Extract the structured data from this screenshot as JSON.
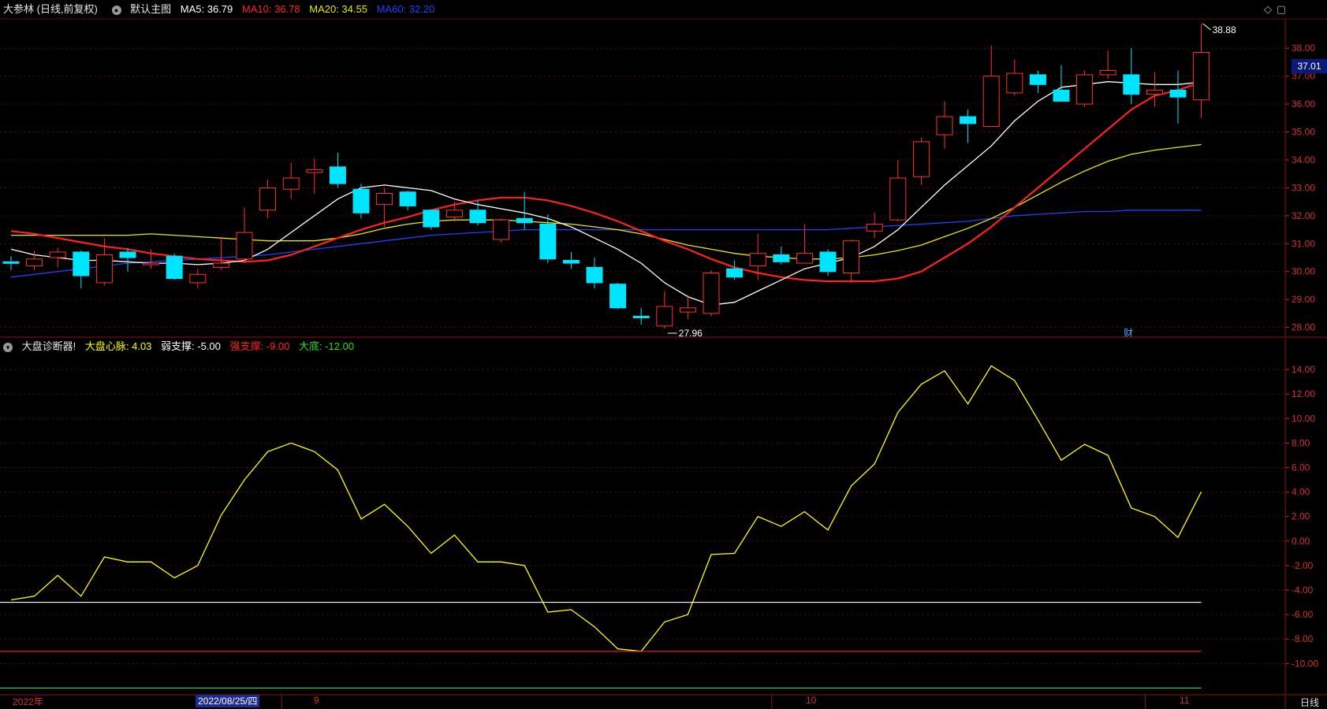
{
  "upper_header": {
    "stock_label": "大参林 (日线,前复权)",
    "template_label": "默认主图",
    "ma5": "MA5: 36.79",
    "ma10": "MA10: 36.78",
    "ma20": "MA20: 34.55",
    "ma60": "MA60: 32.20",
    "colors": {
      "ma5": "#ffffff",
      "ma10": "#ff2020",
      "ma20": "#e8e800",
      "ma60": "#2040ff"
    }
  },
  "lower_header": {
    "indicator_label": "大盘诊断器!",
    "heartbeat": "大盘心脉: 4.03",
    "weak_support": "弱支撑: -5.00",
    "strong_support": "强支撑: -9.00",
    "bottom": "大底: -12.00",
    "colors": {
      "heartbeat": "#ffff00",
      "weak_support": "#ffffff",
      "strong_support": "#ff2020",
      "bottom": "#20dd20"
    }
  },
  "current_price_tag": "37.01",
  "high_annotation": "38.88",
  "low_annotation": "27.96",
  "finance_marker": "财",
  "x_axis": {
    "left_year": "2022年",
    "cursor_date": "2022/08/25/四",
    "month_9": "9",
    "month_10": "10",
    "month_11": "11",
    "period": "日线"
  },
  "window_icons": [
    "diamond-icon",
    "restore-icon"
  ],
  "chart_data": [
    {
      "type": "candlestick",
      "title": "大参林 (日线,前复权)",
      "y_ticks": [
        "38.00",
        "37.00",
        "36.00",
        "35.00",
        "34.00",
        "33.00",
        "32.00",
        "31.00",
        "30.00",
        "29.00",
        "28.00"
      ],
      "ylim": [
        27.65,
        39.05
      ],
      "up_color": "#ff3030",
      "down_color": "#00e5ff",
      "candles": [
        {
          "o": 30.35,
          "h": 30.55,
          "l": 30.05,
          "c": 30.3
        },
        {
          "o": 30.2,
          "h": 30.75,
          "l": 30.05,
          "c": 30.45
        },
        {
          "o": 30.5,
          "h": 30.85,
          "l": 30.15,
          "c": 30.7
        },
        {
          "o": 30.7,
          "h": 30.75,
          "l": 29.4,
          "c": 29.85
        },
        {
          "o": 29.6,
          "h": 31.2,
          "l": 29.5,
          "c": 30.6
        },
        {
          "o": 30.7,
          "h": 30.85,
          "l": 30.0,
          "c": 30.5
        },
        {
          "o": 30.25,
          "h": 30.8,
          "l": 30.1,
          "c": 30.3
        },
        {
          "o": 30.55,
          "h": 30.65,
          "l": 29.7,
          "c": 29.75
        },
        {
          "o": 29.6,
          "h": 30.1,
          "l": 29.4,
          "c": 29.9
        },
        {
          "o": 30.15,
          "h": 31.25,
          "l": 30.05,
          "c": 30.3
        },
        {
          "o": 30.45,
          "h": 32.3,
          "l": 30.3,
          "c": 31.4
        },
        {
          "o": 32.2,
          "h": 33.3,
          "l": 31.9,
          "c": 33.0
        },
        {
          "o": 32.95,
          "h": 33.9,
          "l": 32.6,
          "c": 33.35
        },
        {
          "o": 33.55,
          "h": 34.05,
          "l": 32.8,
          "c": 33.65
        },
        {
          "o": 33.75,
          "h": 34.25,
          "l": 33.0,
          "c": 33.15
        },
        {
          "o": 32.95,
          "h": 33.15,
          "l": 31.9,
          "c": 32.1
        },
        {
          "o": 32.4,
          "h": 33.0,
          "l": 31.6,
          "c": 32.8
        },
        {
          "o": 32.85,
          "h": 32.9,
          "l": 32.2,
          "c": 32.35
        },
        {
          "o": 32.2,
          "h": 32.2,
          "l": 31.5,
          "c": 31.6
        },
        {
          "o": 31.95,
          "h": 32.5,
          "l": 31.8,
          "c": 32.2
        },
        {
          "o": 32.2,
          "h": 32.55,
          "l": 31.65,
          "c": 31.75
        },
        {
          "o": 31.15,
          "h": 31.9,
          "l": 31.05,
          "c": 31.85
        },
        {
          "o": 31.9,
          "h": 32.85,
          "l": 31.5,
          "c": 31.75
        },
        {
          "o": 31.7,
          "h": 32.05,
          "l": 30.3,
          "c": 30.45
        },
        {
          "o": 30.4,
          "h": 30.7,
          "l": 30.1,
          "c": 30.3
        },
        {
          "o": 30.15,
          "h": 30.5,
          "l": 29.4,
          "c": 29.6
        },
        {
          "o": 29.55,
          "h": 29.6,
          "l": 28.65,
          "c": 28.7
        },
        {
          "o": 28.4,
          "h": 28.7,
          "l": 28.1,
          "c": 28.35
        },
        {
          "o": 28.05,
          "h": 29.3,
          "l": 27.96,
          "c": 28.75
        },
        {
          "o": 28.55,
          "h": 29.15,
          "l": 28.3,
          "c": 28.7
        },
        {
          "o": 28.5,
          "h": 30.05,
          "l": 28.4,
          "c": 29.95
        },
        {
          "o": 30.1,
          "h": 30.4,
          "l": 29.7,
          "c": 29.8
        },
        {
          "o": 30.2,
          "h": 31.35,
          "l": 29.7,
          "c": 30.65
        },
        {
          "o": 30.6,
          "h": 30.9,
          "l": 30.25,
          "c": 30.35
        },
        {
          "o": 30.3,
          "h": 31.7,
          "l": 30.3,
          "c": 30.65
        },
        {
          "o": 30.7,
          "h": 30.8,
          "l": 29.85,
          "c": 30.0
        },
        {
          "o": 29.95,
          "h": 31.15,
          "l": 29.6,
          "c": 31.1
        },
        {
          "o": 31.45,
          "h": 32.1,
          "l": 31.2,
          "c": 31.7
        },
        {
          "o": 31.85,
          "h": 34.0,
          "l": 31.8,
          "c": 33.35
        },
        {
          "o": 33.4,
          "h": 34.8,
          "l": 33.1,
          "c": 34.65
        },
        {
          "o": 34.9,
          "h": 36.1,
          "l": 34.4,
          "c": 35.55
        },
        {
          "o": 35.55,
          "h": 35.8,
          "l": 34.6,
          "c": 35.3
        },
        {
          "o": 35.2,
          "h": 38.1,
          "l": 35.2,
          "c": 37.0
        },
        {
          "o": 36.4,
          "h": 37.6,
          "l": 36.3,
          "c": 37.1
        },
        {
          "o": 37.05,
          "h": 37.2,
          "l": 36.4,
          "c": 36.7
        },
        {
          "o": 36.5,
          "h": 37.4,
          "l": 36.1,
          "c": 36.1
        },
        {
          "o": 36.0,
          "h": 37.2,
          "l": 35.9,
          "c": 37.05
        },
        {
          "o": 37.05,
          "h": 37.9,
          "l": 36.9,
          "c": 37.2
        },
        {
          "o": 37.05,
          "h": 38.0,
          "l": 36.0,
          "c": 36.35
        },
        {
          "o": 36.35,
          "h": 37.15,
          "l": 35.9,
          "c": 36.5
        },
        {
          "o": 36.5,
          "h": 37.2,
          "l": 35.3,
          "c": 36.25
        },
        {
          "o": 36.15,
          "h": 38.88,
          "l": 35.5,
          "c": 37.85
        }
      ],
      "series": [
        {
          "name": "MA5",
          "color": "#ffffff",
          "values": [
            30.8,
            30.6,
            30.5,
            30.4,
            30.4,
            30.35,
            30.3,
            30.3,
            30.25,
            30.3,
            30.4,
            30.8,
            31.4,
            32.0,
            32.6,
            33.0,
            33.1,
            33.0,
            32.9,
            32.6,
            32.4,
            32.25,
            32.1,
            31.9,
            31.6,
            31.2,
            30.8,
            30.3,
            29.6,
            29.1,
            28.8,
            28.9,
            29.3,
            29.7,
            30.1,
            30.3,
            30.5,
            30.9,
            31.5,
            32.3,
            33.1,
            33.8,
            34.5,
            35.4,
            36.1,
            36.6,
            36.7,
            36.8,
            36.75,
            36.7,
            36.7,
            36.79
          ]
        },
        {
          "name": "MA10",
          "color": "#ff2020",
          "values": [
            31.45,
            31.35,
            31.2,
            31.05,
            30.9,
            30.8,
            30.65,
            30.55,
            30.45,
            30.4,
            30.35,
            30.4,
            30.6,
            30.9,
            31.2,
            31.5,
            31.75,
            31.95,
            32.2,
            32.4,
            32.55,
            32.65,
            32.65,
            32.55,
            32.35,
            32.1,
            31.8,
            31.45,
            31.1,
            30.8,
            30.45,
            30.15,
            29.95,
            29.8,
            29.7,
            29.65,
            29.65,
            29.65,
            29.75,
            30.0,
            30.5,
            31.0,
            31.6,
            32.3,
            33.0,
            33.7,
            34.4,
            35.1,
            35.8,
            36.3,
            36.5,
            36.78
          ]
        },
        {
          "name": "MA20",
          "color": "#e8e800",
          "values": [
            31.3,
            31.3,
            31.3,
            31.3,
            31.3,
            31.3,
            31.35,
            31.3,
            31.25,
            31.2,
            31.15,
            31.1,
            31.1,
            31.1,
            31.2,
            31.35,
            31.55,
            31.7,
            31.8,
            31.85,
            31.85,
            31.85,
            31.8,
            31.75,
            31.7,
            31.6,
            31.5,
            31.35,
            31.15,
            30.95,
            30.8,
            30.65,
            30.55,
            30.5,
            30.45,
            30.45,
            30.5,
            30.6,
            30.75,
            30.95,
            31.25,
            31.55,
            31.9,
            32.3,
            32.75,
            33.2,
            33.6,
            33.95,
            34.2,
            34.35,
            34.45,
            34.55
          ]
        },
        {
          "name": "MA60",
          "color": "#2040ff",
          "values": [
            29.8,
            29.9,
            30.0,
            30.1,
            30.2,
            30.3,
            30.35,
            30.4,
            30.45,
            30.5,
            30.55,
            30.6,
            30.7,
            30.8,
            30.9,
            31.0,
            31.1,
            31.2,
            31.3,
            31.35,
            31.4,
            31.45,
            31.5,
            31.5,
            31.5,
            31.5,
            31.5,
            31.5,
            31.5,
            31.5,
            31.5,
            31.5,
            31.5,
            31.5,
            31.5,
            31.5,
            31.55,
            31.6,
            31.65,
            31.7,
            31.75,
            31.8,
            31.9,
            32.0,
            32.05,
            32.1,
            32.15,
            32.15,
            32.2,
            32.2,
            32.2,
            32.2
          ]
        }
      ]
    },
    {
      "type": "line",
      "title": "大盘诊断器!",
      "y_ticks": [
        "14.00",
        "12.00",
        "10.00",
        "8.00",
        "6.00",
        "4.00",
        "2.00",
        "0.00",
        "-2.00",
        "-4.00",
        "-6.00",
        "-8.00",
        "-10.00"
      ],
      "ylim": [
        -12.55,
        15.1
      ],
      "series": [
        {
          "name": "大盘心脉",
          "color": "#ffff00",
          "values": [
            -4.8,
            -4.5,
            -2.8,
            -4.5,
            -1.3,
            -1.7,
            -1.7,
            -3.0,
            -2.0,
            2.1,
            5.0,
            7.3,
            8.0,
            7.3,
            5.8,
            1.8,
            3.0,
            1.2,
            -1.0,
            0.5,
            -1.7,
            -1.7,
            -2.0,
            -5.8,
            -5.6,
            -7.0,
            -8.8,
            -9.0,
            -6.6,
            -6.0,
            -1.1,
            -1.0,
            2.0,
            1.2,
            2.4,
            0.9,
            4.5,
            6.3,
            10.5,
            12.8,
            13.9,
            11.2,
            14.3,
            13.1,
            9.9,
            6.6,
            7.9,
            7.0,
            2.7,
            2.0,
            0.3,
            4.03
          ]
        },
        {
          "name": "弱支撑",
          "color": "#ffffff",
          "values": [
            -5.0
          ]
        },
        {
          "name": "强支撑",
          "color": "#ff2020",
          "values": [
            -9.0
          ]
        },
        {
          "name": "大底",
          "color": "#20dd20",
          "values": [
            -12.0
          ]
        }
      ]
    }
  ]
}
